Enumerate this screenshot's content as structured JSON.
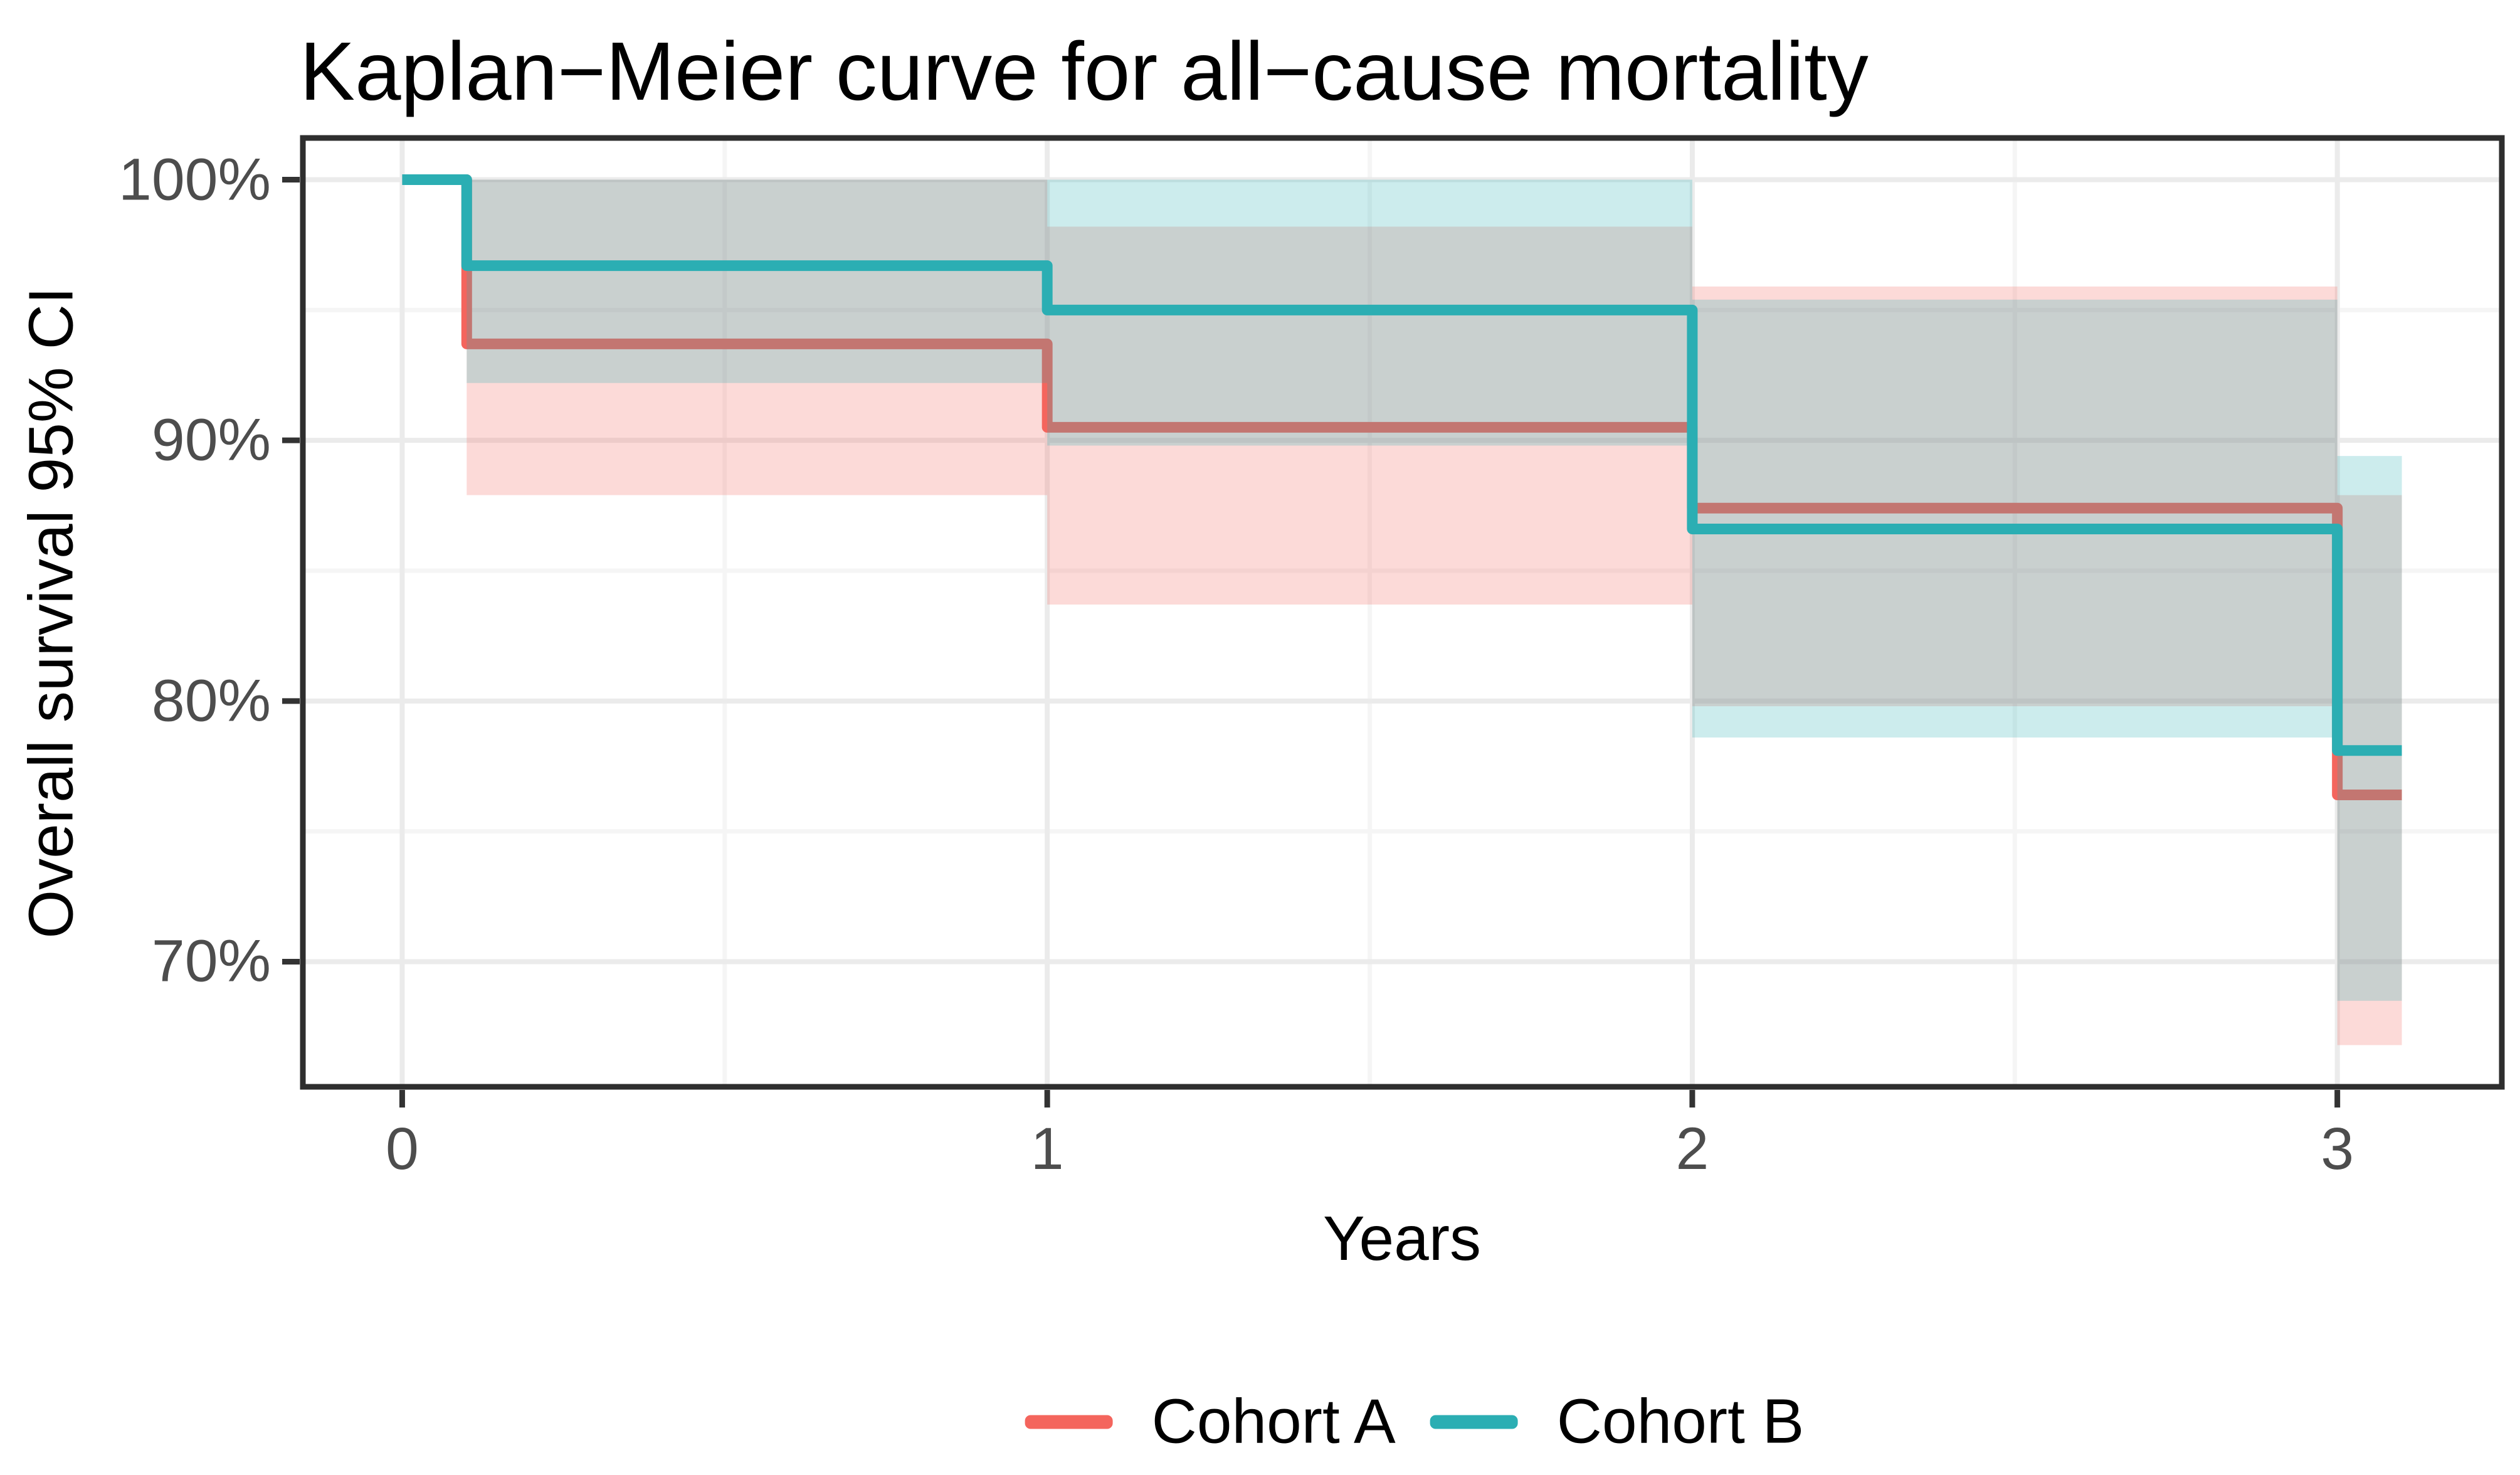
{
  "chart_data": {
    "type": "line",
    "subtype": "kaplan-meier-step-with-ci-ribbons",
    "title": "Kaplan−Meier curve for all−cause mortality",
    "xlabel": "Years",
    "ylabel": "Overall survival 95% CI",
    "xlim": [
      -0.154,
      3.255
    ],
    "ylim": [
      65.2,
      101.6
    ],
    "grid": true,
    "legend_position": "bottom",
    "ci_opacity": 0.24,
    "x_ticks": [
      {
        "value": 0,
        "label": "0"
      },
      {
        "value": 1,
        "label": "1"
      },
      {
        "value": 2,
        "label": "2"
      },
      {
        "value": 3,
        "label": "3"
      }
    ],
    "y_ticks": [
      {
        "value": 100,
        "label": "100%"
      },
      {
        "value": 90,
        "label": "90%"
      },
      {
        "value": 80,
        "label": "80%"
      },
      {
        "value": 70,
        "label": "70%"
      }
    ],
    "x_minor_ticks": [
      0.5,
      1.5,
      2.5
    ],
    "y_minor_ticks": [
      95,
      85,
      75
    ],
    "series": [
      {
        "name": "Cohort A",
        "color": "#F4655D",
        "steps_t_survivalpct": [
          [
            0,
            100
          ],
          [
            0.1,
            93.7
          ],
          [
            1,
            90.5
          ],
          [
            2,
            87.4
          ],
          [
            3,
            76.4
          ]
        ],
        "end_time": 3.1,
        "ci_segments_t0_t1_lo_hi": [
          [
            0.1,
            1,
            87.9,
            100
          ],
          [
            1,
            2,
            83.7,
            98.2
          ],
          [
            2,
            3,
            79.8,
            95.9
          ],
          [
            3,
            3.1,
            66.8,
            87.9
          ]
        ]
      },
      {
        "name": "Cohort B",
        "color": "#2BAEB3",
        "steps_t_survivalpct": [
          [
            0,
            100
          ],
          [
            0.1,
            96.7
          ],
          [
            1,
            95.0
          ],
          [
            2,
            86.6
          ],
          [
            3,
            78.1
          ]
        ],
        "end_time": 3.1,
        "ci_segments_t0_t1_lo_hi": [
          [
            0.1,
            1,
            92.2,
            100
          ],
          [
            1,
            2,
            89.8,
            100
          ],
          [
            2,
            3,
            78.6,
            95.4
          ],
          [
            3,
            3.1,
            68.5,
            89.4
          ]
        ]
      }
    ]
  },
  "legend": {
    "items": [
      {
        "label": "Cohort A",
        "color": "#F4655D"
      },
      {
        "label": "Cohort B",
        "color": "#2BAEB3"
      }
    ]
  },
  "style": {
    "grid_major_color": "#EBEBEB",
    "grid_minor_color": "#F5F5F5",
    "panel_border_color": "#2E2E2E",
    "tick_mark_color": "#333333",
    "tick_label_color": "#4D4D4D",
    "title_color": "#000000",
    "axis_title_color": "#000000"
  }
}
